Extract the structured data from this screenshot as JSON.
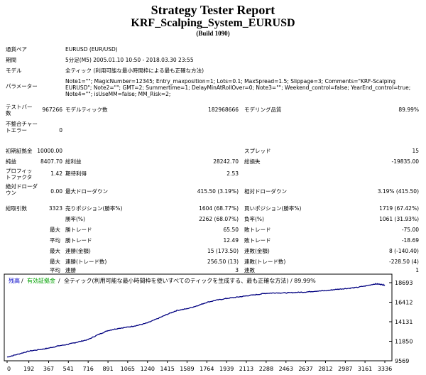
{
  "report": {
    "title": "Strategy Tester Report",
    "system": "KRF_Scalping_System_EURUSD",
    "build": "(Build 1090)"
  },
  "info": {
    "symbol_label": "通貨ペア",
    "symbol_value": "EURUSD (EUR/USD)",
    "period_label": "期間",
    "period_value": "5分足(M5) 2005.01.10 10:50 - 2018.03.30 23:55",
    "model_label": "モデル",
    "model_value": "全ティック (利用可能な最小時間枠による最も正確な方法)",
    "params_label": "パラメーター",
    "params_value": "Note1=\"\"; MagicNumber=12345; Entry_maxposition=1; Lots=0.1; MaxSpread=1.5; Slippage=3; Comments=\"KRF-Scalping EURUSD\"; Note2=\"\"; GMT=2; Summertime=1; DelayMinAtRollOver=0; Note3=\"\"; Weekend_control=false; YearEnd_control=true; Note4=\"\"; isUseMM=false; MM_Risk=2;"
  },
  "stats": {
    "bars_label": "テストバー数",
    "bars_value": "967266",
    "ticks_label": "モデルティック数",
    "ticks_value": "182968666",
    "quality_label": "モデリング品質",
    "quality_value": "89.99%",
    "mismatch_label": "不整合チャートエラー",
    "mismatch_value": "0",
    "deposit_label": "初期証拠金",
    "deposit_value": "10000.00",
    "spread_label": "スプレッド",
    "spread_value": "15",
    "net_label": "純益",
    "net_value": "8407.70",
    "gross_profit_label": "総利益",
    "gross_profit_value": "28242.70",
    "gross_loss_label": "総損失",
    "gross_loss_value": "-19835.00",
    "pf_label": "プロフィットファクタ",
    "pf_value": "1.42",
    "payoff_label": "期待利得",
    "payoff_value": "2.53",
    "abs_dd_label": "絶対ドローダウン",
    "abs_dd_value": "0.00",
    "max_dd_label": "最大ドローダウン",
    "max_dd_value": "415.50 (3.19%)",
    "rel_dd_label": "相対ドローダウン",
    "rel_dd_value": "3.19% (415.50)",
    "trades_label": "総取引数",
    "trades_value": "3323",
    "short_label": "売りポジション(勝率%)",
    "short_value": "1604 (68.77%)",
    "long_label": "買いポジション(勝率%)",
    "long_value": "1719 (67.42%)",
    "win_label": "勝率(%)",
    "win_value": "2262 (68.07%)",
    "lose_label": "負率(%)",
    "lose_value": "1061 (31.93%)",
    "max_prefix": "最大",
    "avg_prefix": "平均",
    "largest_win_label": "勝トレード",
    "largest_win_value": "65.50",
    "largest_loss_label": "敗トレード",
    "largest_loss_value": "-75.00",
    "avg_win_label": "勝トレード",
    "avg_win_value": "12.49",
    "avg_loss_label": "敗トレード",
    "avg_loss_value": "-18.69",
    "cons_wins_money_label": "連勝(金額)",
    "cons_wins_money_value": "15 (173.50)",
    "cons_loss_money_label": "連敗(金額)",
    "cons_loss_money_value": "8 (-140.40)",
    "cons_profit_label": "連勝(トレード数)",
    "cons_profit_value": "256.50 (13)",
    "cons_lossamt_label": "連敗(トレード数)",
    "cons_lossamt_value": "-228.50 (4)",
    "avg_cons_wins_label": "連勝",
    "avg_cons_wins_value": "3",
    "avg_cons_loss_label": "連敗",
    "avg_cons_loss_value": "1"
  },
  "chart_data": {
    "type": "line",
    "legend": {
      "balance": "残高",
      "sep1": " / ",
      "equity": "有効証拠金",
      "sep2": " / ",
      "text": "全ティック(利用可能な最小時間枠を使いすべてのティックを生成する、最も正確な方法) / 89.99%"
    },
    "colors": {
      "balance": "#0000c8",
      "equity": "#00a000",
      "line": "#000080"
    },
    "x_ticks": [
      "0",
      "192",
      "367",
      "541",
      "716",
      "891",
      "1065",
      "1240",
      "1415",
      "1589",
      "1764",
      "1939",
      "2113",
      "2288",
      "2463",
      "2637",
      "2812",
      "2987",
      "3161",
      "3336"
    ],
    "y_ticks": [
      "18693",
      "16412",
      "14131",
      "11850",
      "9569"
    ],
    "ylim": [
      9569,
      18693
    ],
    "xlim": [
      0,
      3336
    ],
    "x": [
      0,
      100,
      192,
      300,
      367,
      450,
      541,
      620,
      716,
      800,
      891,
      980,
      1065,
      1150,
      1240,
      1330,
      1415,
      1500,
      1589,
      1680,
      1764,
      1850,
      1939,
      2030,
      2113,
      2200,
      2288,
      2370,
      2463,
      2550,
      2637,
      2720,
      2812,
      2900,
      2987,
      3070,
      3161,
      3250,
      3300,
      3336
    ],
    "y": [
      10000,
      10350,
      10700,
      10900,
      11050,
      11300,
      11500,
      11750,
      12050,
      12600,
      13100,
      13350,
      13500,
      13700,
      14000,
      14500,
      15000,
      15450,
      15650,
      16000,
      16400,
      16650,
      16850,
      17000,
      17150,
      17300,
      17450,
      17500,
      17500,
      17550,
      17600,
      17700,
      17750,
      17900,
      18000,
      18100,
      18300,
      18550,
      18500,
      18400
    ]
  }
}
